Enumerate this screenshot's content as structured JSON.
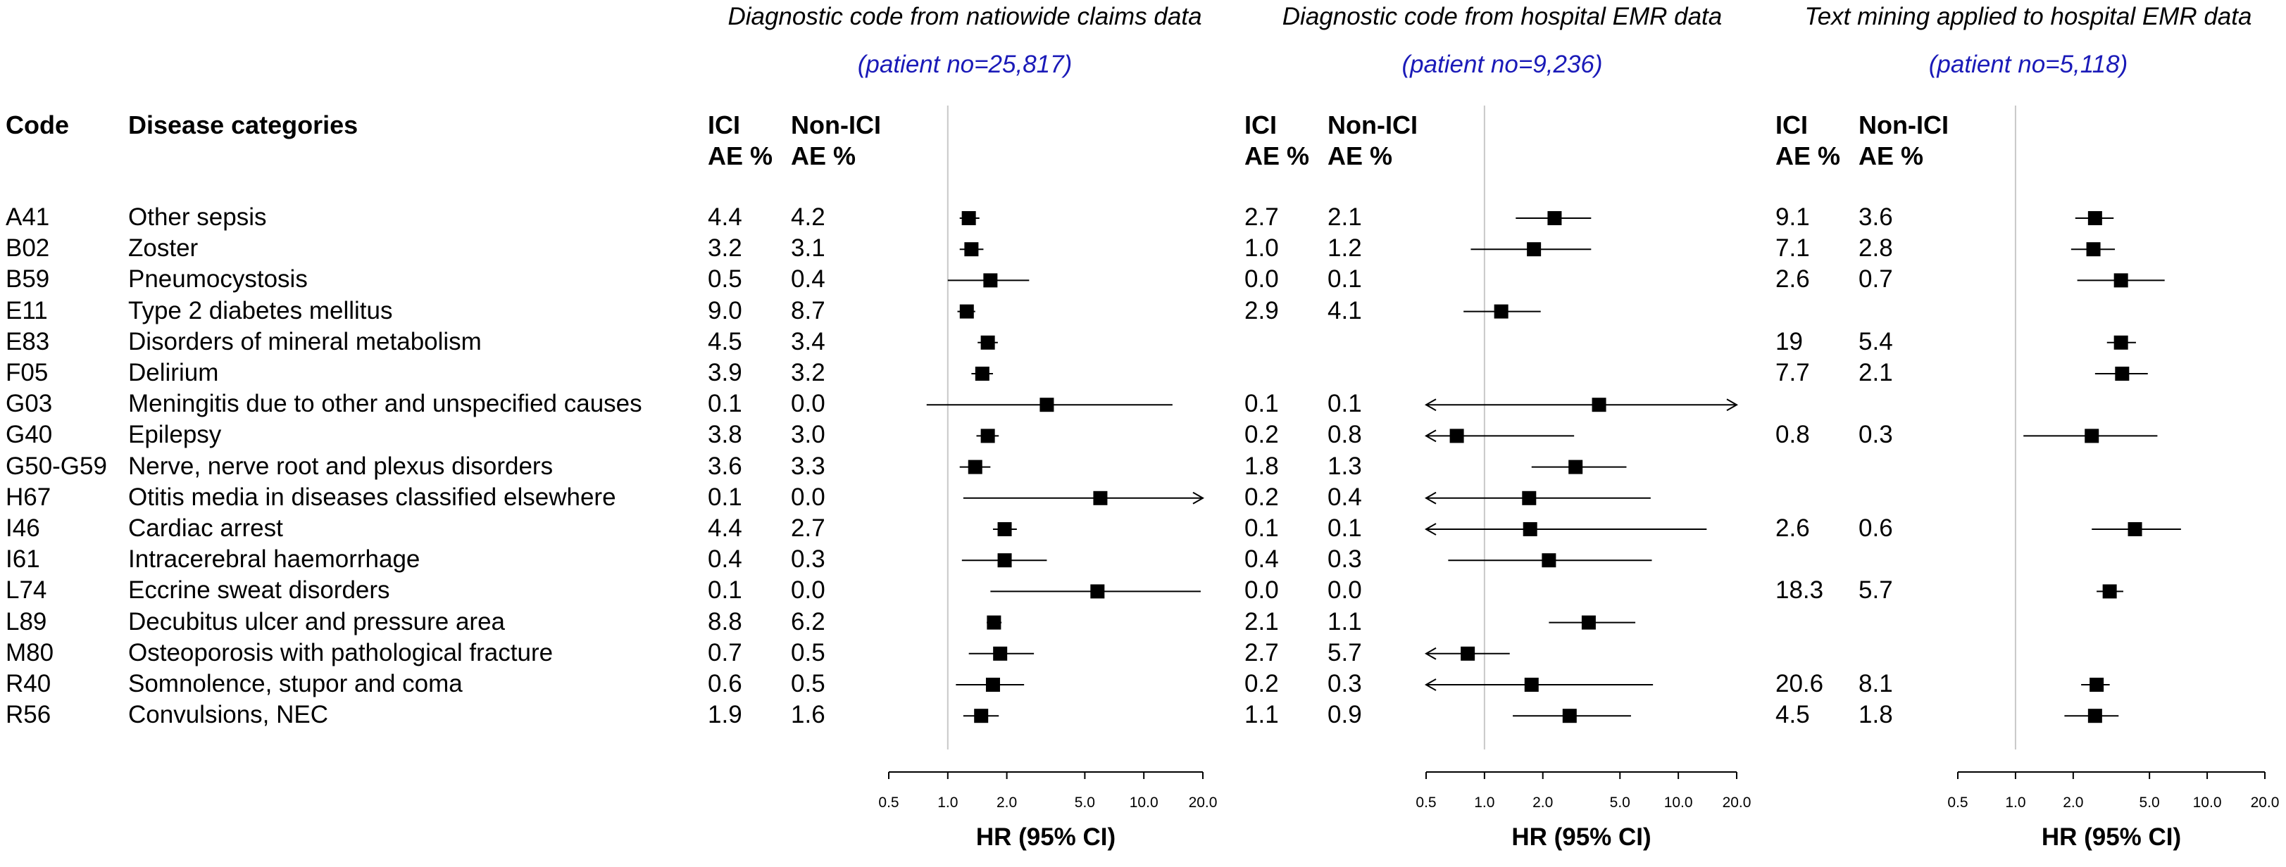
{
  "columns": {
    "code": "Code",
    "category": "Disease categories",
    "ici_label_1": "ICI",
    "ici_label_2": "AE %",
    "nonici_label_1": "Non-ICI",
    "nonici_label_2": "AE %"
  },
  "chart_data": {
    "type": "forest",
    "xscale": "log",
    "xlim": [
      0.5,
      20.0
    ],
    "reference_line": 1.0,
    "ticks": [
      "0.5",
      "1.0",
      "2.0",
      "5.0",
      "10.0",
      "20.0"
    ],
    "xlabel": "HR (95% CI)",
    "rows": [
      {
        "code": "A41",
        "category": "Other sepsis"
      },
      {
        "code": "B02",
        "category": "Zoster"
      },
      {
        "code": "B59",
        "category": "Pneumocystosis"
      },
      {
        "code": "E11",
        "category": "Type 2 diabetes mellitus"
      },
      {
        "code": "E83",
        "category": "Disorders of mineral metabolism"
      },
      {
        "code": "F05",
        "category": "Delirium"
      },
      {
        "code": "G03",
        "category": "Meningitis due to other and unspecified causes"
      },
      {
        "code": "G40",
        "category": "Epilepsy"
      },
      {
        "code": "G50-G59",
        "category": "Nerve, nerve root and plexus disorders"
      },
      {
        "code": "H67",
        "category": "Otitis media in diseases classified elsewhere"
      },
      {
        "code": "I46",
        "category": "Cardiac arrest"
      },
      {
        "code": "I61",
        "category": "Intracerebral haemorrhage"
      },
      {
        "code": "L74",
        "category": "Eccrine sweat disorders"
      },
      {
        "code": "L89",
        "category": "Decubitus ulcer and pressure area"
      },
      {
        "code": "M80",
        "category": "Osteoporosis with pathological fracture"
      },
      {
        "code": "R40",
        "category": "Somnolence, stupor and coma"
      },
      {
        "code": "R56",
        "category": "Convulsions, NEC"
      }
    ],
    "panels": [
      {
        "title": "Diagnostic code from natiowide claims data",
        "subtitle": "(patient no=25,817)",
        "rows": [
          {
            "ici": "4.4",
            "nonici": "4.2",
            "hr": 1.28,
            "lo": 1.15,
            "hi": 1.45
          },
          {
            "ici": "3.2",
            "nonici": "3.1",
            "hr": 1.32,
            "lo": 1.15,
            "hi": 1.52
          },
          {
            "ici": "0.5",
            "nonici": "0.4",
            "hr": 1.65,
            "lo": 1.0,
            "hi": 2.6
          },
          {
            "ici": "9.0",
            "nonici": "8.7",
            "hr": 1.25,
            "lo": 1.12,
            "hi": 1.38
          },
          {
            "ici": "4.5",
            "nonici": "3.4",
            "hr": 1.6,
            "lo": 1.42,
            "hi": 1.8
          },
          {
            "ici": "3.9",
            "nonici": "3.2",
            "hr": 1.5,
            "lo": 1.32,
            "hi": 1.7
          },
          {
            "ici": "0.1",
            "nonici": "0.0",
            "hr": 3.2,
            "lo": 0.78,
            "hi": 14.0
          },
          {
            "ici": "3.8",
            "nonici": "3.0",
            "hr": 1.6,
            "lo": 1.4,
            "hi": 1.82
          },
          {
            "ici": "3.6",
            "nonici": "3.3",
            "hr": 1.38,
            "lo": 1.15,
            "hi": 1.65
          },
          {
            "ici": "0.1",
            "nonici": "0.0",
            "hr": 6.0,
            "lo": 1.2,
            "hi": 20.0,
            "arrow_right": true
          },
          {
            "ici": "4.4",
            "nonici": "2.7",
            "hr": 1.95,
            "lo": 1.7,
            "hi": 2.25
          },
          {
            "ici": "0.4",
            "nonici": "0.3",
            "hr": 1.95,
            "lo": 1.18,
            "hi": 3.2
          },
          {
            "ici": "0.1",
            "nonici": "0.0",
            "hr": 5.8,
            "lo": 1.65,
            "hi": 19.5
          },
          {
            "ici": "8.8",
            "nonici": "6.2",
            "hr": 1.72,
            "lo": 1.58,
            "hi": 1.88
          },
          {
            "ici": "0.7",
            "nonici": "0.5",
            "hr": 1.85,
            "lo": 1.28,
            "hi": 2.75
          },
          {
            "ici": "0.6",
            "nonici": "0.5",
            "hr": 1.7,
            "lo": 1.1,
            "hi": 2.45
          },
          {
            "ici": "1.9",
            "nonici": "1.6",
            "hr": 1.48,
            "lo": 1.2,
            "hi": 1.82
          }
        ]
      },
      {
        "title": "Diagnostic code from hospital EMR data",
        "subtitle": "(patient no=9,236)",
        "rows": [
          {
            "ici": "2.7",
            "nonici": "2.1",
            "hr": 2.3,
            "lo": 1.45,
            "hi": 3.55
          },
          {
            "ici": "1.0",
            "nonici": "1.2",
            "hr": 1.8,
            "lo": 0.85,
            "hi": 3.55
          },
          {
            "ici": "0.0",
            "nonici": "0.1",
            "hr": null
          },
          {
            "ici": "2.9",
            "nonici": "4.1",
            "hr": 1.22,
            "lo": 0.78,
            "hi": 1.95
          },
          {
            "ici": "",
            "nonici": "",
            "hr": null
          },
          {
            "ici": "",
            "nonici": "",
            "hr": null
          },
          {
            "ici": "0.1",
            "nonici": "0.1",
            "hr": 3.9,
            "lo": 0.5,
            "hi": 20.0,
            "arrow_left": true,
            "arrow_right": true
          },
          {
            "ici": "0.2",
            "nonici": "0.8",
            "hr": 0.72,
            "lo": 0.5,
            "hi": 2.9,
            "arrow_left": true
          },
          {
            "ici": "1.8",
            "nonici": "1.3",
            "hr": 2.95,
            "lo": 1.75,
            "hi": 5.4
          },
          {
            "ici": "0.2",
            "nonici": "0.4",
            "hr": 1.7,
            "lo": 0.5,
            "hi": 7.2,
            "arrow_left": true
          },
          {
            "ici": "0.1",
            "nonici": "0.1",
            "hr": 1.72,
            "lo": 0.5,
            "hi": 14.0,
            "arrow_left": true
          },
          {
            "ici": "0.4",
            "nonici": "0.3",
            "hr": 2.15,
            "lo": 0.65,
            "hi": 7.3
          },
          {
            "ici": "0.0",
            "nonici": "0.0",
            "hr": null
          },
          {
            "ici": "2.1",
            "nonici": "1.1",
            "hr": 3.45,
            "lo": 2.15,
            "hi": 6.0
          },
          {
            "ici": "2.7",
            "nonici": "5.7",
            "hr": 0.82,
            "lo": 0.5,
            "hi": 1.35,
            "arrow_left": true
          },
          {
            "ici": "0.2",
            "nonici": "0.3",
            "hr": 1.75,
            "lo": 0.5,
            "hi": 7.4,
            "arrow_left": true
          },
          {
            "ici": "1.1",
            "nonici": "0.9",
            "hr": 2.75,
            "lo": 1.4,
            "hi": 5.7
          }
        ]
      },
      {
        "title": "Text mining applied to hospital EMR data",
        "subtitle": "(patient no=5,118)",
        "rows": [
          {
            "ici": "9.1",
            "nonici": "3.6",
            "hr": 2.6,
            "lo": 2.05,
            "hi": 3.25
          },
          {
            "ici": "7.1",
            "nonici": "2.8",
            "hr": 2.55,
            "lo": 1.95,
            "hi": 3.3
          },
          {
            "ici": "2.6",
            "nonici": "0.7",
            "hr": 3.55,
            "lo": 2.1,
            "hi": 6.0
          },
          {
            "ici": "",
            "nonici": "",
            "hr": null
          },
          {
            "ici": "19",
            "nonici": "5.4",
            "hr": 3.55,
            "lo": 3.0,
            "hi": 4.25
          },
          {
            "ici": "7.7",
            "nonici": "2.1",
            "hr": 3.6,
            "lo": 2.6,
            "hi": 4.9
          },
          {
            "ici": "",
            "nonici": "",
            "hr": null
          },
          {
            "ici": "0.8",
            "nonici": "0.3",
            "hr": 2.5,
            "lo": 1.1,
            "hi": 5.5
          },
          {
            "ici": "",
            "nonici": "",
            "hr": null
          },
          {
            "ici": "",
            "nonici": "",
            "hr": null
          },
          {
            "ici": "2.6",
            "nonici": "0.6",
            "hr": 4.2,
            "lo": 2.5,
            "hi": 7.3
          },
          {
            "ici": "",
            "nonici": "",
            "hr": null
          },
          {
            "ici": "18.3",
            "nonici": "5.7",
            "hr": 3.1,
            "lo": 2.65,
            "hi": 3.65
          },
          {
            "ici": "",
            "nonici": "",
            "hr": null
          },
          {
            "ici": "",
            "nonici": "",
            "hr": null
          },
          {
            "ici": "20.6",
            "nonici": "8.1",
            "hr": 2.65,
            "lo": 2.2,
            "hi": 3.1
          },
          {
            "ici": "4.5",
            "nonici": "1.8",
            "hr": 2.6,
            "lo": 1.8,
            "hi": 3.45
          }
        ]
      }
    ]
  }
}
